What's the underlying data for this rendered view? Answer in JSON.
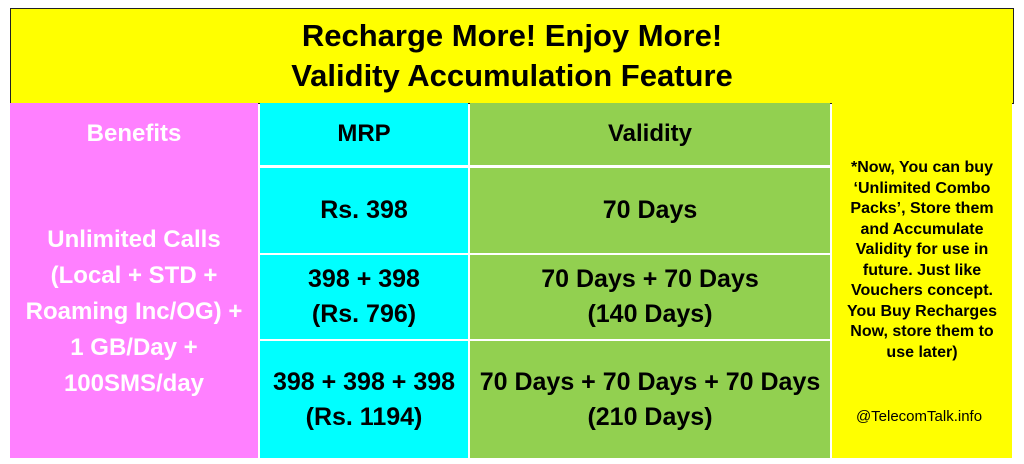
{
  "title": {
    "line1": "Recharge More! Enjoy More!",
    "line2": "Validity Accumulation Feature"
  },
  "headers": {
    "benefits": "Benefits",
    "mrp": "MRP",
    "validity": "Validity"
  },
  "benefits_text": [
    "Unlimited Calls",
    "(Local + STD +",
    "Roaming Inc/OG) +",
    "1 GB/Day +",
    "100SMS/day"
  ],
  "rows": [
    {
      "mrp": [
        "Rs. 398"
      ],
      "validity": [
        "70 Days"
      ]
    },
    {
      "mrp": [
        "398 + 398",
        "(Rs. 796)"
      ],
      "validity": [
        "70 Days + 70 Days",
        "(140 Days)"
      ]
    },
    {
      "mrp": [
        "398 + 398 + 398",
        "(Rs. 1194)"
      ],
      "validity": [
        "70 Days + 70 Days + 70 Days",
        "(210 Days)"
      ]
    }
  ],
  "note": [
    "*Now, You can buy",
    "‘Unlimited Combo",
    "Packs’, Store them",
    "and Accumulate",
    "Validity for use in",
    "future. Just like",
    "Vouchers concept.",
    "You Buy Recharges",
    "Now, store them to",
    "use later)"
  ],
  "credit": "@TelecomTalk.info",
  "colors": {
    "title_bg": "#ffff00",
    "benefits_bg": "#ff80ff",
    "mrp_bg": "#00ffff",
    "validity_bg": "#92d050",
    "note_bg": "#ffff00"
  }
}
